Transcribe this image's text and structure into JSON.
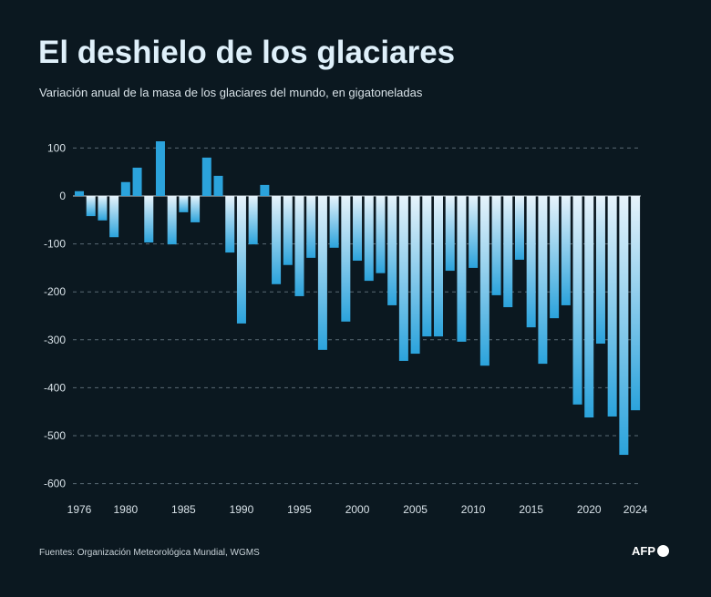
{
  "title": "El deshielo de los glaciares",
  "subtitle": "Variación anual de la masa de los glaciares del mundo, en gigatoneladas",
  "footer": "Fuentes: Organización Meteorológica Mundial, WGMS",
  "logo": "AFP",
  "colors": {
    "background": "#0b1820",
    "positive": "#2ba3dc",
    "negative_top": "#e6f3fb",
    "negative_bottom": "#2ba3dc"
  },
  "chart_data": {
    "type": "bar",
    "title": "El deshielo de los glaciares",
    "subtitle": "Variación anual de la masa de los glaciares del mundo, en gigatoneladas",
    "xlabel": "",
    "ylabel": "",
    "ylim": [
      -600,
      100
    ],
    "yticks": [
      100,
      0,
      -100,
      -200,
      -300,
      -400,
      -500,
      -600
    ],
    "xticks": [
      1976,
      1980,
      1985,
      1990,
      1995,
      2000,
      2005,
      2010,
      2015,
      2020,
      2024
    ],
    "grid": true,
    "categories": [
      1976,
      1977,
      1978,
      1979,
      1980,
      1981,
      1982,
      1983,
      1984,
      1985,
      1986,
      1987,
      1988,
      1989,
      1990,
      1991,
      1992,
      1993,
      1994,
      1995,
      1996,
      1997,
      1998,
      1999,
      2000,
      2001,
      2002,
      2003,
      2004,
      2005,
      2006,
      2007,
      2008,
      2009,
      2010,
      2011,
      2012,
      2013,
      2014,
      2015,
      2016,
      2017,
      2018,
      2019,
      2020,
      2021,
      2022,
      2023,
      2024
    ],
    "values": [
      10,
      -42,
      -51,
      -86,
      29,
      59,
      -97,
      114,
      -101,
      -34,
      -55,
      80,
      42,
      -118,
      -266,
      -101,
      23,
      -184,
      -144,
      -209,
      -129,
      -321,
      -108,
      -262,
      -135,
      -177,
      -161,
      -228,
      -344,
      -329,
      -293,
      -293,
      -156,
      -304,
      -150,
      -354,
      -207,
      -232,
      -133,
      -274,
      -350,
      -255,
      -228,
      -435,
      -462,
      -308,
      -460,
      -540,
      -447
    ]
  }
}
